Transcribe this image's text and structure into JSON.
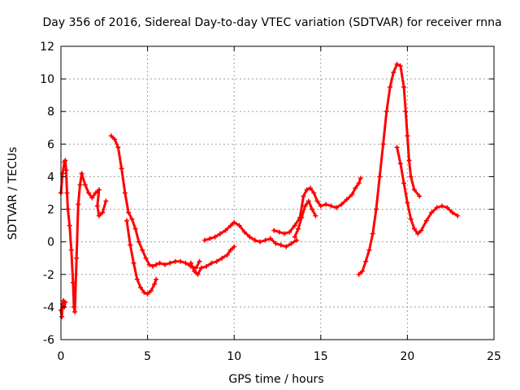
{
  "chart_data": {
    "type": "scatter",
    "title": "Day 356 of 2016, Sidereal Day-to-day VTEC variation (SDTVAR) for receiver rnna",
    "xlabel": "GPS time / hours",
    "ylabel": "SDTVAR / TECUs",
    "xlim": [
      0,
      25
    ],
    "ylim": [
      -6,
      12
    ],
    "xticks": [
      "0",
      "5",
      "10",
      "15",
      "20",
      "25"
    ],
    "yticks": [
      "-6",
      "-4",
      "-2",
      "0",
      "2",
      "4",
      "6",
      "8",
      "10",
      "12"
    ],
    "grid": true,
    "marker": "+",
    "color": "#ff0000",
    "series": [
      {
        "name": "seg1",
        "x": [
          0.0,
          0.1,
          0.2,
          0.25,
          0.3,
          0.35,
          0.4,
          0.5,
          0.6,
          0.7,
          0.75,
          0.8,
          0.9,
          1.0,
          1.1,
          1.2,
          1.4,
          1.6,
          1.8,
          2.0,
          2.2,
          2.1,
          2.2,
          2.4,
          2.6
        ],
        "y": [
          3.0,
          4.2,
          4.9,
          5.0,
          4.4,
          3.0,
          2.0,
          1.0,
          -0.5,
          -2.5,
          -4.0,
          -4.3,
          -1.0,
          2.3,
          3.5,
          4.2,
          3.5,
          3.0,
          2.7,
          3.0,
          3.2,
          2.2,
          1.6,
          1.8,
          2.5
        ]
      },
      {
        "name": "seg2",
        "x": [
          0.0,
          0.05,
          0.1,
          0.15,
          0.2,
          0.25
        ],
        "y": [
          -4.2,
          -4.6,
          -3.8,
          -3.6,
          -4.0,
          -3.7
        ]
      },
      {
        "name": "seg3",
        "x": [
          2.9,
          3.1,
          3.3,
          3.5,
          3.7,
          3.9,
          4.1,
          4.3,
          4.5,
          4.7,
          4.9,
          5.1,
          5.3,
          5.5,
          5.7,
          6.0,
          6.3,
          6.6,
          6.9,
          7.2,
          7.5,
          7.8,
          8.0
        ],
        "y": [
          6.5,
          6.3,
          5.8,
          4.5,
          3.0,
          1.8,
          1.4,
          0.8,
          0.0,
          -0.5,
          -1.0,
          -1.4,
          -1.5,
          -1.4,
          -1.3,
          -1.4,
          -1.3,
          -1.2,
          -1.2,
          -1.3,
          -1.5,
          -1.6,
          -1.2
        ]
      },
      {
        "name": "seg4",
        "x": [
          3.8,
          4.0,
          4.2,
          4.4,
          4.6,
          4.8,
          5.0,
          5.2,
          5.4,
          5.5
        ],
        "y": [
          1.3,
          -0.2,
          -1.3,
          -2.3,
          -2.8,
          -3.1,
          -3.2,
          -3.0,
          -2.6,
          -2.3
        ]
      },
      {
        "name": "seg5",
        "x": [
          7.5,
          7.7,
          7.9,
          8.1,
          8.4,
          8.7,
          9.0,
          9.3,
          9.6,
          9.8,
          10.0
        ],
        "y": [
          -1.3,
          -1.8,
          -2.0,
          -1.6,
          -1.5,
          -1.3,
          -1.2,
          -1.0,
          -0.8,
          -0.5,
          -0.3
        ]
      },
      {
        "name": "seg6",
        "x": [
          8.3,
          8.6,
          8.9,
          9.2,
          9.5,
          9.8,
          10.0,
          10.3,
          10.6,
          10.9,
          11.2,
          11.5,
          11.8,
          12.1,
          12.4,
          12.7,
          13.0,
          13.3,
          13.6
        ],
        "y": [
          0.1,
          0.2,
          0.3,
          0.5,
          0.7,
          1.0,
          1.2,
          1.0,
          0.6,
          0.3,
          0.1,
          0.0,
          0.1,
          0.2,
          -0.1,
          -0.2,
          -0.3,
          -0.1,
          0.1
        ]
      },
      {
        "name": "seg7",
        "x": [
          12.3,
          12.6,
          12.9,
          13.2,
          13.5,
          13.8,
          14.0,
          14.2,
          14.4,
          14.6,
          14.8,
          15.0,
          15.3,
          15.6,
          15.9,
          16.2,
          16.5,
          16.8,
          17.0,
          17.2,
          17.3
        ],
        "y": [
          0.7,
          0.6,
          0.5,
          0.6,
          1.0,
          1.5,
          2.8,
          3.2,
          3.3,
          3.0,
          2.5,
          2.2,
          2.3,
          2.2,
          2.1,
          2.3,
          2.6,
          2.9,
          3.3,
          3.6,
          3.9
        ]
      },
      {
        "name": "seg8",
        "x": [
          13.5,
          13.7,
          13.9,
          14.1,
          14.3,
          14.5,
          14.7
        ],
        "y": [
          0.3,
          0.8,
          1.5,
          2.2,
          2.5,
          2.0,
          1.6
        ]
      },
      {
        "name": "seg9",
        "x": [
          17.2,
          17.4,
          17.6,
          17.8,
          18.0,
          18.2,
          18.4,
          18.6,
          18.8,
          19.0,
          19.2,
          19.4,
          19.6,
          19.8,
          19.9,
          20.0,
          20.1,
          20.2,
          20.4,
          20.7
        ],
        "y": [
          -2.0,
          -1.8,
          -1.2,
          -0.5,
          0.5,
          2.0,
          4.0,
          6.0,
          8.0,
          9.5,
          10.4,
          10.9,
          10.8,
          9.5,
          8.0,
          6.5,
          5.0,
          4.0,
          3.2,
          2.8
        ]
      },
      {
        "name": "seg10",
        "x": [
          19.4,
          19.6,
          19.8,
          20.0,
          20.2,
          20.4,
          20.6,
          20.8,
          21.1,
          21.4,
          21.7,
          22.0,
          22.3,
          22.6,
          22.9
        ],
        "y": [
          5.8,
          4.8,
          3.6,
          2.4,
          1.4,
          0.8,
          0.5,
          0.7,
          1.3,
          1.8,
          2.1,
          2.2,
          2.1,
          1.8,
          1.6
        ]
      }
    ]
  }
}
